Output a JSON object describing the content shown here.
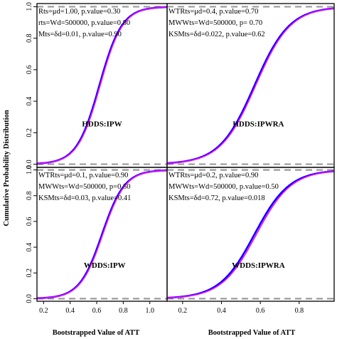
{
  "chart_data": {
    "type": "line",
    "ylabel": "Cumulative Probability Distribution",
    "xlabel": "Bootstrapped Value of ATT",
    "reference_lines": [
      0,
      1
    ],
    "panels": [
      {
        "id": "top-left",
        "title": "HDDS:IPW",
        "xlim": [
          0.15,
          1.13
        ],
        "ylim": [
          -0.02,
          1.02
        ],
        "x_ticks": [],
        "y_ticks": [
          "0.0",
          "0.2",
          "0.4",
          "0.6",
          "0.8",
          "1.0"
        ],
        "stats": [
          "Rts=μd=1.00,  p.value=0.30",
          "rts=Wd=500000,  p.value=0.80",
          "Mts=δd=0.01,  p.value=0.90"
        ],
        "ecdf_median": 0.62,
        "ecdf_scale": 0.085,
        "curve_offset": 0.006,
        "series": [
          {
            "color": "#0000ff"
          },
          {
            "color": "#ff00ff"
          }
        ]
      },
      {
        "id": "top-right",
        "title": "HDDS:IPWRA",
        "xlim": [
          0.12,
          0.98
        ],
        "ylim": [
          -0.02,
          1.02
        ],
        "x_ticks": [],
        "y_ticks": [],
        "stats": [
          "WTRts=μd=0.4,     p.value=0.70",
          "MWWts=Wd=500000,    p= 0.70",
          "KSMts=δd=0.022,   p.value=0.62"
        ],
        "ecdf_median": 0.57,
        "ecdf_scale": 0.09,
        "curve_offset": 0.006,
        "series": [
          {
            "color": "#0000ff"
          },
          {
            "color": "#ff00ff"
          }
        ]
      },
      {
        "id": "bottom-left",
        "title": "WDDS:IPW",
        "xlim": [
          0.15,
          1.13
        ],
        "ylim": [
          -0.02,
          1.02
        ],
        "x_ticks": [
          "0.2",
          "0.4",
          "0.6",
          "0.8",
          "1.0"
        ],
        "y_ticks": [
          "0.0",
          "0.2",
          "0.4",
          "0.6",
          "0.8",
          "1.0"
        ],
        "stats": [
          "WTRts=μd=0.1,     p.value=0.90",
          "MWWts=Wd=500000,   p=0.50",
          "KSMts=δd=0.03,   p.value=0.41"
        ],
        "ecdf_median": 0.64,
        "ecdf_scale": 0.085,
        "curve_offset": 0.006,
        "series": [
          {
            "color": "#0000ff"
          },
          {
            "color": "#ff00ff"
          }
        ]
      },
      {
        "id": "bottom-right",
        "title": "WDDS:IPWRA",
        "xlim": [
          0.12,
          0.98
        ],
        "ylim": [
          -0.02,
          1.02
        ],
        "x_ticks": [
          "0.2",
          "0.4",
          "0.6",
          "0.8"
        ],
        "y_ticks": [],
        "stats": [
          "WTRts=μd=0.2,   p.value=0.90",
          "MWWts=Wd=500000,   p.value=0.50",
          "KSMts=δd=0.72,    p.value=0.018"
        ],
        "ecdf_median": 0.57,
        "ecdf_scale": 0.09,
        "curve_offset": 0.01,
        "series": [
          {
            "color": "#0000ff"
          },
          {
            "color": "#ff00ff"
          }
        ]
      }
    ]
  }
}
